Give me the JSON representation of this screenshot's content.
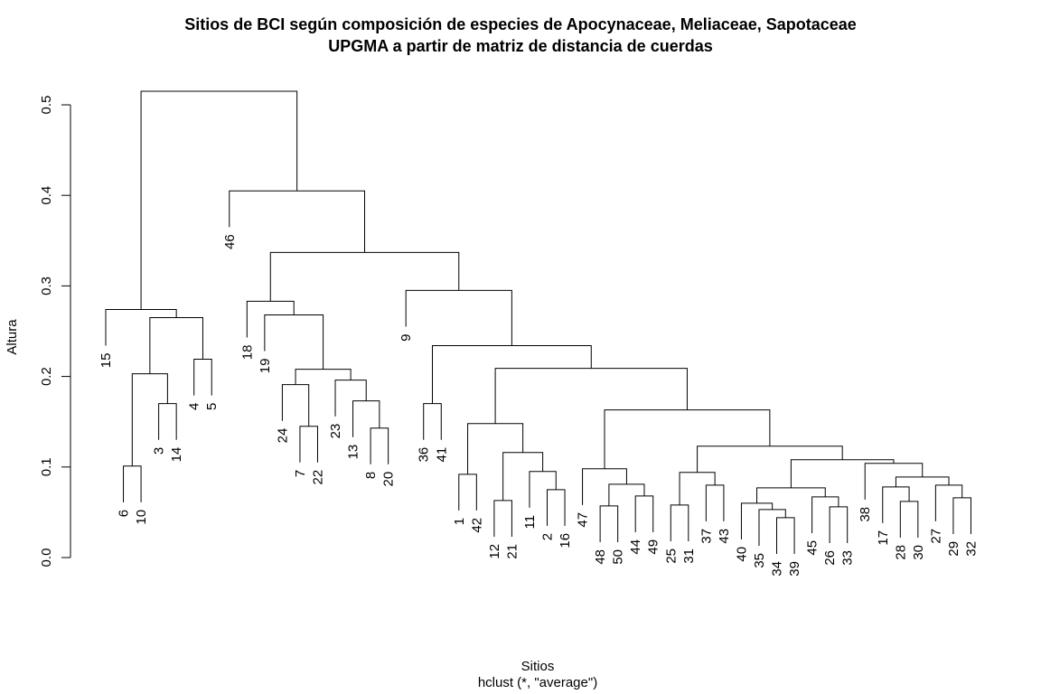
{
  "title": "Sitios de BCI según composición de especies de Apocynaceae, Meliaceae, Sapotaceae",
  "subtitle": "UPGMA a partir de matriz de distancia de cuerdas",
  "xlabel": "Sitios",
  "xsublabel": "hclust (*, \"average\")",
  "chart_data": {
    "type": "dendrogram",
    "method": "UPGMA (average)",
    "ylabel": "Altura",
    "ylim": [
      0,
      0.52
    ],
    "yticks": [
      "0.0",
      "0.1",
      "0.2",
      "0.3",
      "0.4",
      "0.5"
    ],
    "leaves": [
      "15",
      "6",
      "10",
      "3",
      "14",
      "4",
      "5",
      "46",
      "18",
      "19",
      "24",
      "7",
      "22",
      "23",
      "13",
      "8",
      "20",
      "9",
      "36",
      "41",
      "1",
      "42",
      "12",
      "21",
      "11",
      "2",
      "16",
      "47",
      "48",
      "50",
      "44",
      "49",
      "25",
      "31",
      "37",
      "43",
      "40",
      "35",
      "34",
      "39",
      "45",
      "26",
      "33",
      "38",
      "17",
      "28",
      "30",
      "27",
      "29",
      "32"
    ],
    "merges": [
      {
        "a": "6",
        "b": "10",
        "height": 0.101
      },
      {
        "a": "3",
        "b": "14",
        "height": 0.17
      },
      {
        "a": "c1",
        "b": "c2",
        "height": 0.203
      },
      {
        "a": "4",
        "b": "5",
        "height": 0.219
      },
      {
        "a": "c3",
        "b": "c4",
        "height": 0.265
      },
      {
        "a": "15",
        "b": "c5",
        "height": 0.274
      },
      {
        "a": "7",
        "b": "22",
        "height": 0.145
      },
      {
        "a": "24",
        "b": "c7",
        "height": 0.191
      },
      {
        "a": "8",
        "b": "20",
        "height": 0.143
      },
      {
        "a": "13",
        "b": "c9",
        "height": 0.173
      },
      {
        "a": "23",
        "b": "c10",
        "height": 0.196
      },
      {
        "a": "c8",
        "b": "c11",
        "height": 0.208
      },
      {
        "a": "19",
        "b": "c12",
        "height": 0.268
      },
      {
        "a": "18",
        "b": "c13",
        "height": 0.283
      },
      {
        "a": "36",
        "b": "41",
        "height": 0.17
      },
      {
        "a": "1",
        "b": "42",
        "height": 0.092
      },
      {
        "a": "12",
        "b": "21",
        "height": 0.063
      },
      {
        "a": "2",
        "b": "16",
        "height": 0.075
      },
      {
        "a": "11",
        "b": "c18",
        "height": 0.095
      },
      {
        "a": "c17",
        "b": "c19",
        "height": 0.116
      },
      {
        "a": "c16",
        "b": "c20",
        "height": 0.148
      },
      {
        "a": "48",
        "b": "50",
        "height": 0.057
      },
      {
        "a": "44",
        "b": "49",
        "height": 0.068
      },
      {
        "a": "c22",
        "b": "c23",
        "height": 0.081
      },
      {
        "a": "47",
        "b": "c24",
        "height": 0.098
      },
      {
        "a": "25",
        "b": "31",
        "height": 0.058
      },
      {
        "a": "37",
        "b": "43",
        "height": 0.08
      },
      {
        "a": "c26",
        "b": "c27",
        "height": 0.094
      },
      {
        "a": "34",
        "b": "39",
        "height": 0.044
      },
      {
        "a": "35",
        "b": "c29",
        "height": 0.053
      },
      {
        "a": "40",
        "b": "c30",
        "height": 0.06
      },
      {
        "a": "26",
        "b": "33",
        "height": 0.056
      },
      {
        "a": "45",
        "b": "c32",
        "height": 0.067
      },
      {
        "a": "c31",
        "b": "c33",
        "height": 0.077
      },
      {
        "a": "28",
        "b": "30",
        "height": 0.062
      },
      {
        "a": "17",
        "b": "c35",
        "height": 0.078
      },
      {
        "a": "29",
        "b": "32",
        "height": 0.066
      },
      {
        "a": "27",
        "b": "c37",
        "height": 0.08
      },
      {
        "a": "c36",
        "b": "c38",
        "height": 0.089
      },
      {
        "a": "38",
        "b": "c39",
        "height": 0.104
      },
      {
        "a": "c34",
        "b": "c40",
        "height": 0.108
      },
      {
        "a": "c28",
        "b": "c41",
        "height": 0.123
      },
      {
        "a": "c25",
        "b": "c42",
        "height": 0.163
      },
      {
        "a": "c21",
        "b": "c43",
        "height": 0.209
      },
      {
        "a": "c15",
        "b": "c44",
        "height": 0.234
      },
      {
        "a": "9",
        "b": "c45",
        "height": 0.295
      },
      {
        "a": "c14",
        "b": "c46",
        "height": 0.337
      },
      {
        "a": "46",
        "b": "c47",
        "height": 0.405
      },
      {
        "a": "c6",
        "b": "c48",
        "height": 0.515
      }
    ]
  }
}
